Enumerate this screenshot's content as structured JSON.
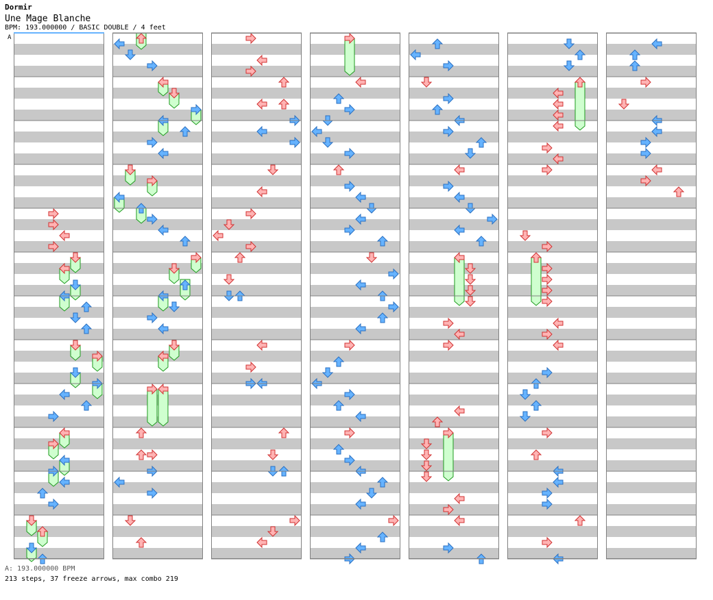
{
  "header": {
    "artist": "Dormir",
    "title": "Une Mage Blanche",
    "info": "BPM: 193.000000 / BASIC DOUBLE / 4 feet"
  },
  "footer": {
    "bpm_text": "A: 193.000000 BPM",
    "stats": "213 steps, 37 freeze arrows, max combo 219"
  },
  "bpm_marker": "A",
  "colors": {
    "stripe": "#c8c8c8",
    "measure_line": "#808080",
    "blue_arrow": "#66b3ff",
    "blue_stroke": "#2a6fc0",
    "red_arrow": "#ffb3b3",
    "red_stroke": "#d03030",
    "freeze_fill": "#cfffcf",
    "freeze_stroke": "#1e9a1e"
  }
}
